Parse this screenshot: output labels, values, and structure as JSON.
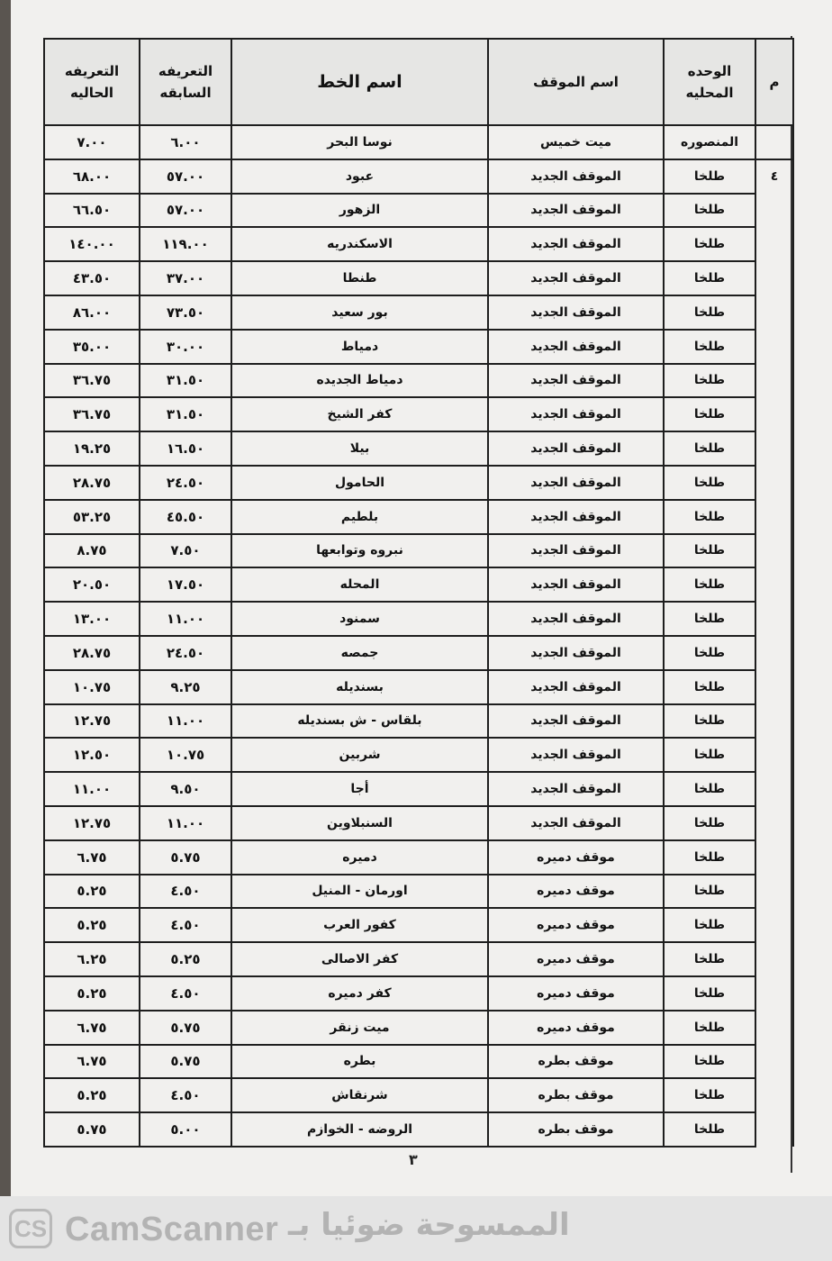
{
  "table": {
    "headers": {
      "index": "م",
      "unit": "الوحده المحليه",
      "station": "اسم الموقف",
      "line": "اسم الخط",
      "prev_fare": "التعريفه السابقه",
      "curr_fare": "التعريفه الحاليه"
    },
    "group_index": "٤",
    "rows": [
      {
        "unit": "المنصوره",
        "station": "ميت خميس",
        "line": "نوسا البحر",
        "prev": "٦.٠٠",
        "curr": "٧.٠٠"
      },
      {
        "unit": "طلخا",
        "station": "الموقف الجديد",
        "line": "عبود",
        "prev": "٥٧.٠٠",
        "curr": "٦٨.٠٠"
      },
      {
        "unit": "طلخا",
        "station": "الموقف الجديد",
        "line": "الزهور",
        "prev": "٥٧.٠٠",
        "curr": "٦٦.٥٠"
      },
      {
        "unit": "طلخا",
        "station": "الموقف الجديد",
        "line": "الاسكندريه",
        "prev": "١١٩.٠٠",
        "curr": "١٤٠.٠٠"
      },
      {
        "unit": "طلخا",
        "station": "الموقف الجديد",
        "line": "طنطا",
        "prev": "٣٧.٠٠",
        "curr": "٤٣.٥٠"
      },
      {
        "unit": "طلخا",
        "station": "الموقف الجديد",
        "line": "بور سعيد",
        "prev": "٧٣.٥٠",
        "curr": "٨٦.٠٠"
      },
      {
        "unit": "طلخا",
        "station": "الموقف الجديد",
        "line": "دمياط",
        "prev": "٣٠.٠٠",
        "curr": "٣٥.٠٠"
      },
      {
        "unit": "طلخا",
        "station": "الموقف الجديد",
        "line": "دمياط الجديده",
        "prev": "٣١.٥٠",
        "curr": "٣٦.٧٥"
      },
      {
        "unit": "طلخا",
        "station": "الموقف الجديد",
        "line": "كفر الشيخ",
        "prev": "٣١.٥٠",
        "curr": "٣٦.٧٥"
      },
      {
        "unit": "طلخا",
        "station": "الموقف الجديد",
        "line": "بيلا",
        "prev": "١٦.٥٠",
        "curr": "١٩.٢٥"
      },
      {
        "unit": "طلخا",
        "station": "الموقف الجديد",
        "line": "الحامول",
        "prev": "٢٤.٥٠",
        "curr": "٢٨.٧٥"
      },
      {
        "unit": "طلخا",
        "station": "الموقف الجديد",
        "line": "بلطيم",
        "prev": "٤٥.٥٠",
        "curr": "٥٣.٢٥"
      },
      {
        "unit": "طلخا",
        "station": "الموقف الجديد",
        "line": "نبروه وتوابعها",
        "prev": "٧.٥٠",
        "curr": "٨.٧٥"
      },
      {
        "unit": "طلخا",
        "station": "الموقف الجديد",
        "line": "المحله",
        "prev": "١٧.٥٠",
        "curr": "٢٠.٥٠"
      },
      {
        "unit": "طلخا",
        "station": "الموقف الجديد",
        "line": "سمنود",
        "prev": "١١.٠٠",
        "curr": "١٣.٠٠"
      },
      {
        "unit": "طلخا",
        "station": "الموقف الجديد",
        "line": "جمصه",
        "prev": "٢٤.٥٠",
        "curr": "٢٨.٧٥"
      },
      {
        "unit": "طلخا",
        "station": "الموقف الجديد",
        "line": "بسنديله",
        "prev": "٩.٢٥",
        "curr": "١٠.٧٥"
      },
      {
        "unit": "طلخا",
        "station": "الموقف الجديد",
        "line": "بلقاس - ش بسنديله",
        "prev": "١١.٠٠",
        "curr": "١٢.٧٥"
      },
      {
        "unit": "طلخا",
        "station": "الموقف الجديد",
        "line": "شربين",
        "prev": "١٠.٧٥",
        "curr": "١٢.٥٠"
      },
      {
        "unit": "طلخا",
        "station": "الموقف الجديد",
        "line": "أجا",
        "prev": "٩.٥٠",
        "curr": "١١.٠٠"
      },
      {
        "unit": "طلخا",
        "station": "الموقف الجديد",
        "line": "السنبلاوين",
        "prev": "١١.٠٠",
        "curr": "١٢.٧٥"
      },
      {
        "unit": "طلخا",
        "station": "موقف دميره",
        "line": "دميره",
        "prev": "٥.٧٥",
        "curr": "٦.٧٥"
      },
      {
        "unit": "طلخا",
        "station": "موقف دميره",
        "line": "اورمان - المنيل",
        "prev": "٤.٥٠",
        "curr": "٥.٢٥"
      },
      {
        "unit": "طلخا",
        "station": "موقف دميره",
        "line": "كفور العرب",
        "prev": "٤.٥٠",
        "curr": "٥.٢٥"
      },
      {
        "unit": "طلخا",
        "station": "موقف دميره",
        "line": "كفر الاصالى",
        "prev": "٥.٢٥",
        "curr": "٦.٢٥"
      },
      {
        "unit": "طلخا",
        "station": "موقف دميره",
        "line": "كفر دميره",
        "prev": "٤.٥٠",
        "curr": "٥.٢٥"
      },
      {
        "unit": "طلخا",
        "station": "موقف دميره",
        "line": "ميت زنقر",
        "prev": "٥.٧٥",
        "curr": "٦.٧٥"
      },
      {
        "unit": "طلخا",
        "station": "موقف بطره",
        "line": "بطره",
        "prev": "٥.٧٥",
        "curr": "٦.٧٥"
      },
      {
        "unit": "طلخا",
        "station": "موقف بطره",
        "line": "شرنقاش",
        "prev": "٤.٥٠",
        "curr": "٥.٢٥"
      },
      {
        "unit": "طلخا",
        "station": "موقف بطره",
        "line": "الروضه - الخوازم",
        "prev": "٥.٠٠",
        "curr": "٥.٧٥"
      }
    ]
  },
  "page_number": "٣",
  "watermark": {
    "logo": "CS",
    "brand": "CamScanner",
    "arabic": "الممسوحة ضوئيا بـ"
  }
}
